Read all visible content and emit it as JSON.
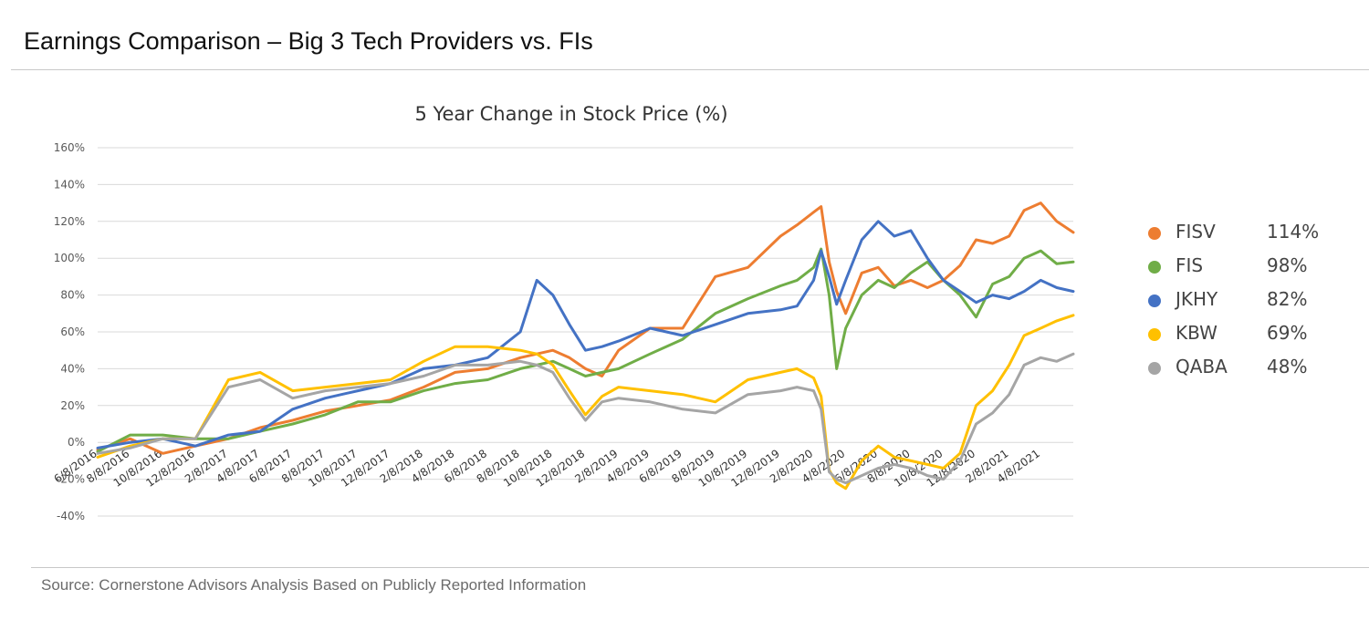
{
  "page": {
    "title": "Earnings Comparison – Big 3 Tech Providers vs. FIs",
    "source": "Source: Cornerstone Advisors Analysis Based on Publicly Reported Information"
  },
  "chart_data": {
    "type": "line",
    "title": "5 Year Change in Stock Price (%)",
    "xlabel": "",
    "ylabel": "",
    "ylim": [
      -40,
      160
    ],
    "yticks": [
      -40,
      -20,
      0,
      20,
      40,
      60,
      80,
      100,
      120,
      140,
      160
    ],
    "ytick_labels": [
      "-40%",
      "-20%",
      "0%",
      "20%",
      "40%",
      "60%",
      "80%",
      "100%",
      "120%",
      "140%",
      "160%"
    ],
    "x_tick_labels": [
      "6/8/2016",
      "8/8/2016",
      "10/8/2016",
      "12/8/2016",
      "2/8/2017",
      "4/8/2017",
      "6/8/2017",
      "8/8/2017",
      "10/8/2017",
      "12/8/2017",
      "2/8/2018",
      "4/8/2018",
      "6/8/2018",
      "8/8/2018",
      "10/8/2018",
      "12/8/2018",
      "2/8/2019",
      "4/8/2019",
      "6/8/2019",
      "8/8/2019",
      "10/8/2019",
      "12/8/2019",
      "2/8/2020",
      "4/8/2020",
      "6/8/2020",
      "8/8/2020",
      "10/8/2020",
      "12/8/2020",
      "2/8/2021",
      "4/8/2021"
    ],
    "x": [
      "6/8/2016",
      "8/8/2016",
      "10/8/2016",
      "12/8/2016",
      "2/8/2017",
      "4/8/2017",
      "6/8/2017",
      "8/8/2017",
      "10/8/2017",
      "12/8/2017",
      "2/8/2018",
      "4/8/2018",
      "6/8/2018",
      "8/8/2018",
      "9/8/2018",
      "10/8/2018",
      "11/8/2018",
      "12/8/2018",
      "1/8/2019",
      "2/8/2019",
      "4/8/2019",
      "6/8/2019",
      "8/8/2019",
      "10/8/2019",
      "12/8/2019",
      "1/8/2020",
      "2/8/2020",
      "2/22/2020",
      "3/8/2020",
      "3/22/2020",
      "4/8/2020",
      "5/8/2020",
      "6/8/2020",
      "7/8/2020",
      "8/8/2020",
      "9/8/2020",
      "10/8/2020",
      "11/8/2020",
      "12/8/2020",
      "1/8/2021",
      "2/8/2021",
      "3/8/2021",
      "4/8/2021",
      "5/8/2021",
      "6/8/2021"
    ],
    "grid": true,
    "legend_position": "right",
    "series": [
      {
        "name": "FISV",
        "label": "114%",
        "color": "#ED7D31",
        "values": [
          -4,
          2,
          -6,
          -2,
          2,
          8,
          12,
          17,
          20,
          23,
          30,
          38,
          40,
          46,
          48,
          50,
          46,
          40,
          36,
          50,
          62,
          62,
          90,
          95,
          112,
          118,
          125,
          128,
          98,
          82,
          70,
          92,
          95,
          85,
          88,
          84,
          88,
          96,
          110,
          108,
          112,
          126,
          130,
          120,
          114
        ]
      },
      {
        "name": "FIS",
        "label": "98%",
        "color": "#70AD47",
        "values": [
          -5,
          4,
          4,
          2,
          2,
          6,
          10,
          15,
          22,
          22,
          28,
          32,
          34,
          40,
          42,
          44,
          40,
          36,
          38,
          40,
          48,
          56,
          70,
          78,
          85,
          88,
          95,
          105,
          80,
          40,
          62,
          80,
          88,
          84,
          92,
          98,
          88,
          80,
          68,
          86,
          90,
          100,
          104,
          97,
          98
        ]
      },
      {
        "name": "JKHY",
        "label": "82%",
        "color": "#4472C4",
        "values": [
          -3,
          0,
          2,
          -2,
          4,
          6,
          18,
          24,
          28,
          32,
          40,
          42,
          46,
          60,
          88,
          80,
          64,
          50,
          52,
          55,
          62,
          58,
          64,
          70,
          72,
          74,
          88,
          104,
          90,
          75,
          88,
          110,
          120,
          112,
          115,
          100,
          88,
          82,
          76,
          80,
          78,
          82,
          88,
          84,
          82
        ]
      },
      {
        "name": "KBW",
        "label": "69%",
        "color": "#FFC000",
        "values": [
          -8,
          -2,
          2,
          2,
          34,
          38,
          28,
          30,
          32,
          34,
          44,
          52,
          52,
          50,
          48,
          42,
          28,
          15,
          25,
          30,
          28,
          26,
          22,
          34,
          38,
          40,
          35,
          25,
          -15,
          -22,
          -25,
          -10,
          -2,
          -8,
          -10,
          -12,
          -14,
          -6,
          20,
          28,
          42,
          58,
          62,
          66,
          69
        ]
      },
      {
        "name": "QABA",
        "label": "48%",
        "color": "#A5A5A5",
        "values": [
          -6,
          -3,
          2,
          2,
          30,
          34,
          24,
          28,
          30,
          32,
          36,
          42,
          42,
          44,
          42,
          38,
          24,
          12,
          22,
          24,
          22,
          18,
          16,
          26,
          28,
          30,
          28,
          18,
          -16,
          -20,
          -22,
          -18,
          -14,
          -12,
          -14,
          -18,
          -20,
          -10,
          10,
          16,
          26,
          42,
          46,
          44,
          48
        ]
      }
    ]
  }
}
